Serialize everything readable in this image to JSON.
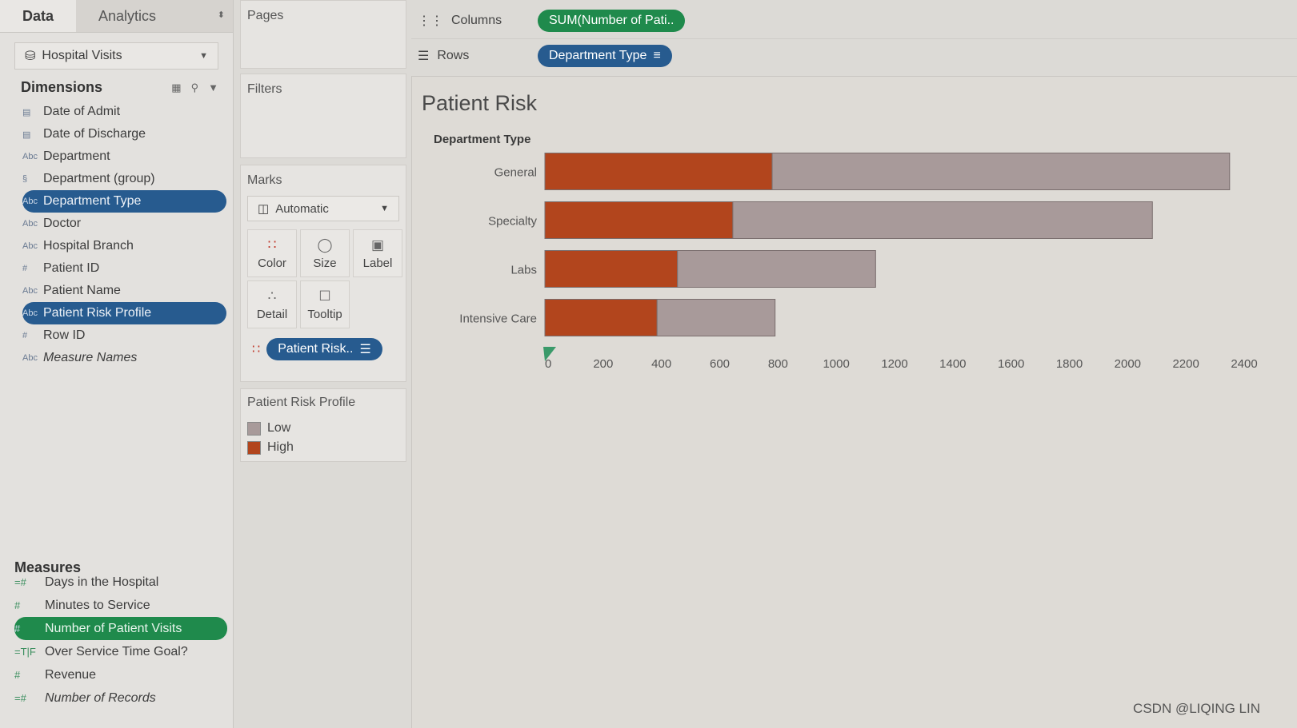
{
  "tabs": {
    "data": "Data",
    "analytics": "Analytics"
  },
  "datasource": "Hospital Visits",
  "dimensions": {
    "heading": "Dimensions",
    "items": [
      {
        "icon": "calendar-icon",
        "type": "▤",
        "label": "Date of Admit"
      },
      {
        "icon": "calendar-icon",
        "type": "▤",
        "label": "Date of Discharge"
      },
      {
        "icon": "abc-icon",
        "type": "Abc",
        "label": "Department"
      },
      {
        "icon": "paperclip-icon",
        "type": "§",
        "label": "Department (group)"
      },
      {
        "icon": "abc-icon",
        "type": "Abc",
        "label": "Department Type",
        "selected": true
      },
      {
        "icon": "abc-icon",
        "type": "Abc",
        "label": "Doctor"
      },
      {
        "icon": "abc-icon",
        "type": "Abc",
        "label": "Hospital Branch"
      },
      {
        "icon": "hash-icon",
        "type": "#",
        "label": "Patient ID"
      },
      {
        "icon": "abc-icon",
        "type": "Abc",
        "label": "Patient Name"
      },
      {
        "icon": "abc-icon",
        "type": "Abc",
        "label": "Patient Risk Profile",
        "selected": true
      },
      {
        "icon": "hash-icon",
        "type": "#",
        "label": "Row ID"
      },
      {
        "icon": "abc-icon",
        "type": "Abc",
        "label": "Measure Names",
        "italic": true
      }
    ]
  },
  "measures": {
    "heading": "Measures",
    "items": [
      {
        "type": "=#",
        "label": "Days in the Hospital"
      },
      {
        "type": "#",
        "label": "Minutes to Service"
      },
      {
        "type": "#",
        "label": "Number of Patient Visits",
        "selected": true
      },
      {
        "type": "=T|F",
        "label": "Over Service Time Goal?"
      },
      {
        "type": "#",
        "label": "Revenue"
      },
      {
        "type": "=#",
        "label": "Number of Records",
        "italic": true
      }
    ]
  },
  "cards": {
    "pages": "Pages",
    "filters": "Filters",
    "marks": "Marks",
    "mark_type": "Automatic",
    "mark_buttons": {
      "color": "Color",
      "size": "Size",
      "label": "Label",
      "detail": "Detail",
      "tooltip": "Tooltip"
    },
    "color_pill": "Patient Risk..",
    "legend_title": "Patient Risk Profile",
    "legend": [
      {
        "label": "Low",
        "color": "#a89a9a"
      },
      {
        "label": "High",
        "color": "#b2451d"
      }
    ]
  },
  "shelves": {
    "columns_label": "Columns",
    "columns_pill": "SUM(Number of Pati..",
    "rows_label": "Rows",
    "rows_pill": "Department Type"
  },
  "view": {
    "title": "Patient Risk",
    "row_header": "Department Type"
  },
  "chart_data": {
    "type": "bar",
    "orientation": "horizontal",
    "stacked": true,
    "categories": [
      "General",
      "Specialty",
      "Labs",
      "Intensive Care"
    ],
    "series": [
      {
        "name": "High",
        "color": "#b2451d",
        "values": [
          780,
          645,
          455,
          385
        ]
      },
      {
        "name": "Low",
        "color": "#a89a9a",
        "values": [
          1570,
          1440,
          680,
          405
        ]
      }
    ],
    "xlim": [
      0,
      2400
    ],
    "xticks": [
      0,
      200,
      400,
      600,
      800,
      1000,
      1200,
      1400,
      1600,
      1800,
      2000,
      2200,
      2400
    ],
    "xtick_labels": [
      "0",
      "200",
      "400",
      "600",
      "800",
      "1000",
      "1200",
      "1400",
      "1600",
      "1800",
      "2000",
      "2200",
      "2400"
    ]
  },
  "watermark": "CSDN @LIQING LIN"
}
